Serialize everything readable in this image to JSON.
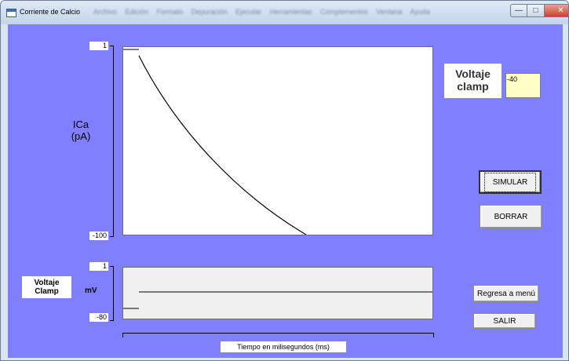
{
  "window": {
    "title": "Corriente de Calcio",
    "menu_items": [
      "Archivo",
      "Edición",
      "Formato",
      "Depuración",
      "Ejecutar",
      "Herramientas",
      "Complementos",
      "Ventana",
      "Ayuda"
    ],
    "min_icon": "minimize-icon",
    "max_icon": "maximize-icon",
    "close_icon": "close-icon"
  },
  "main_plot": {
    "y_axis_label_line1": "ICa",
    "y_axis_label_line2": "(pA)",
    "y_max_label": "1",
    "y_min_label": "-100"
  },
  "clamp_plot": {
    "label_line1": "Voltaje",
    "label_line2": "Clamp",
    "unit": "mV",
    "y_max_label": "1",
    "y_min_label": "-80"
  },
  "clamp_input": {
    "label_line1": "Voltaje",
    "label_line2": "clamp",
    "value": "-40"
  },
  "buttons": {
    "simulate": "SIMULAR",
    "clear": "BORRAR",
    "back_to_menu": "Regresa a menú",
    "exit": "SALIR"
  },
  "time_axis_label": "Tiempo en milisegundos (ms)",
  "colors": {
    "client_background": "#8080ff",
    "input_background": "#ffffc8"
  }
}
